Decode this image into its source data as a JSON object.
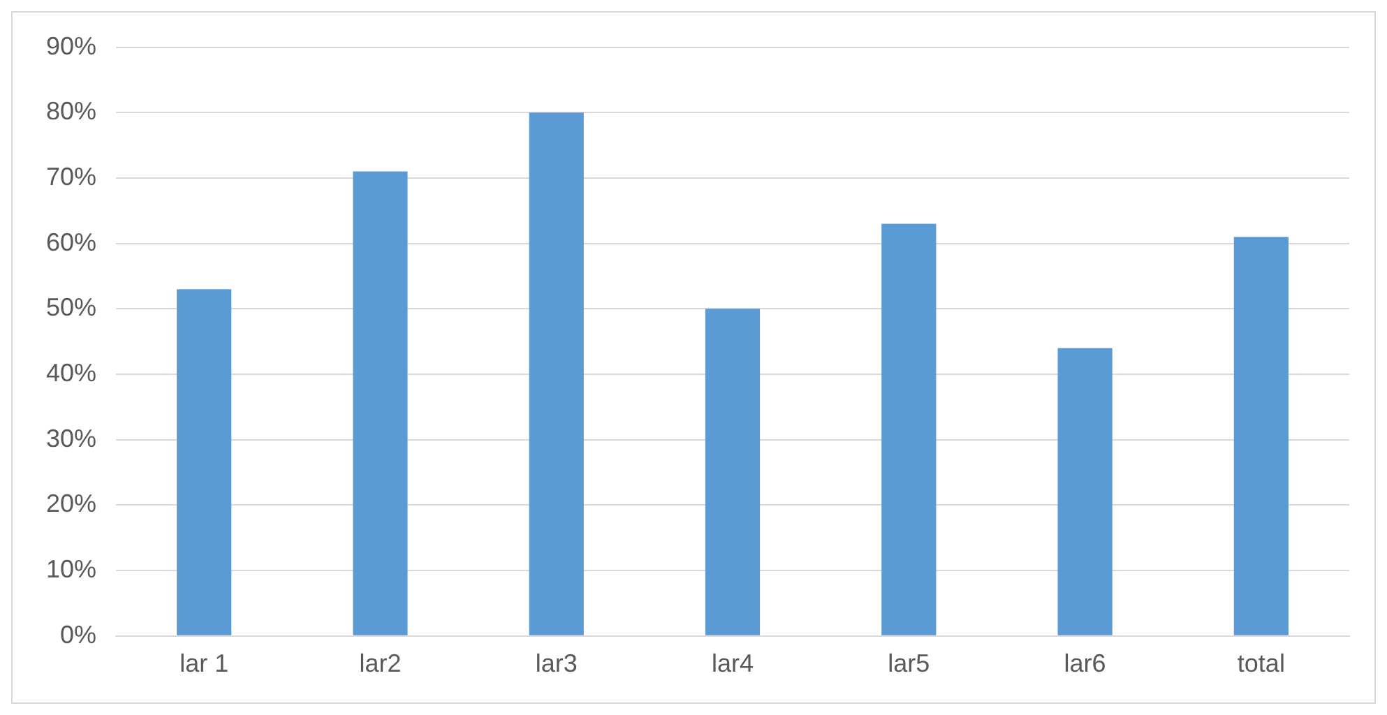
{
  "chart_data": {
    "type": "bar",
    "categories": [
      "lar 1",
      "lar2",
      "lar3",
      "lar4",
      "lar5",
      "lar6",
      "total"
    ],
    "values": [
      53,
      71,
      80,
      50,
      63,
      44,
      61
    ],
    "color": "#5b9bd5",
    "ylim": [
      0,
      90
    ],
    "yticks": [
      {
        "value": 0,
        "label": "0%"
      },
      {
        "value": 10,
        "label": "10%"
      },
      {
        "value": 20,
        "label": "20%"
      },
      {
        "value": 30,
        "label": "30%"
      },
      {
        "value": 40,
        "label": "40%"
      },
      {
        "value": 50,
        "label": "50%"
      },
      {
        "value": 60,
        "label": "60%"
      },
      {
        "value": 70,
        "label": "70%"
      },
      {
        "value": 80,
        "label": "80%"
      },
      {
        "value": 90,
        "label": "90%"
      }
    ],
    "grid": "y"
  }
}
